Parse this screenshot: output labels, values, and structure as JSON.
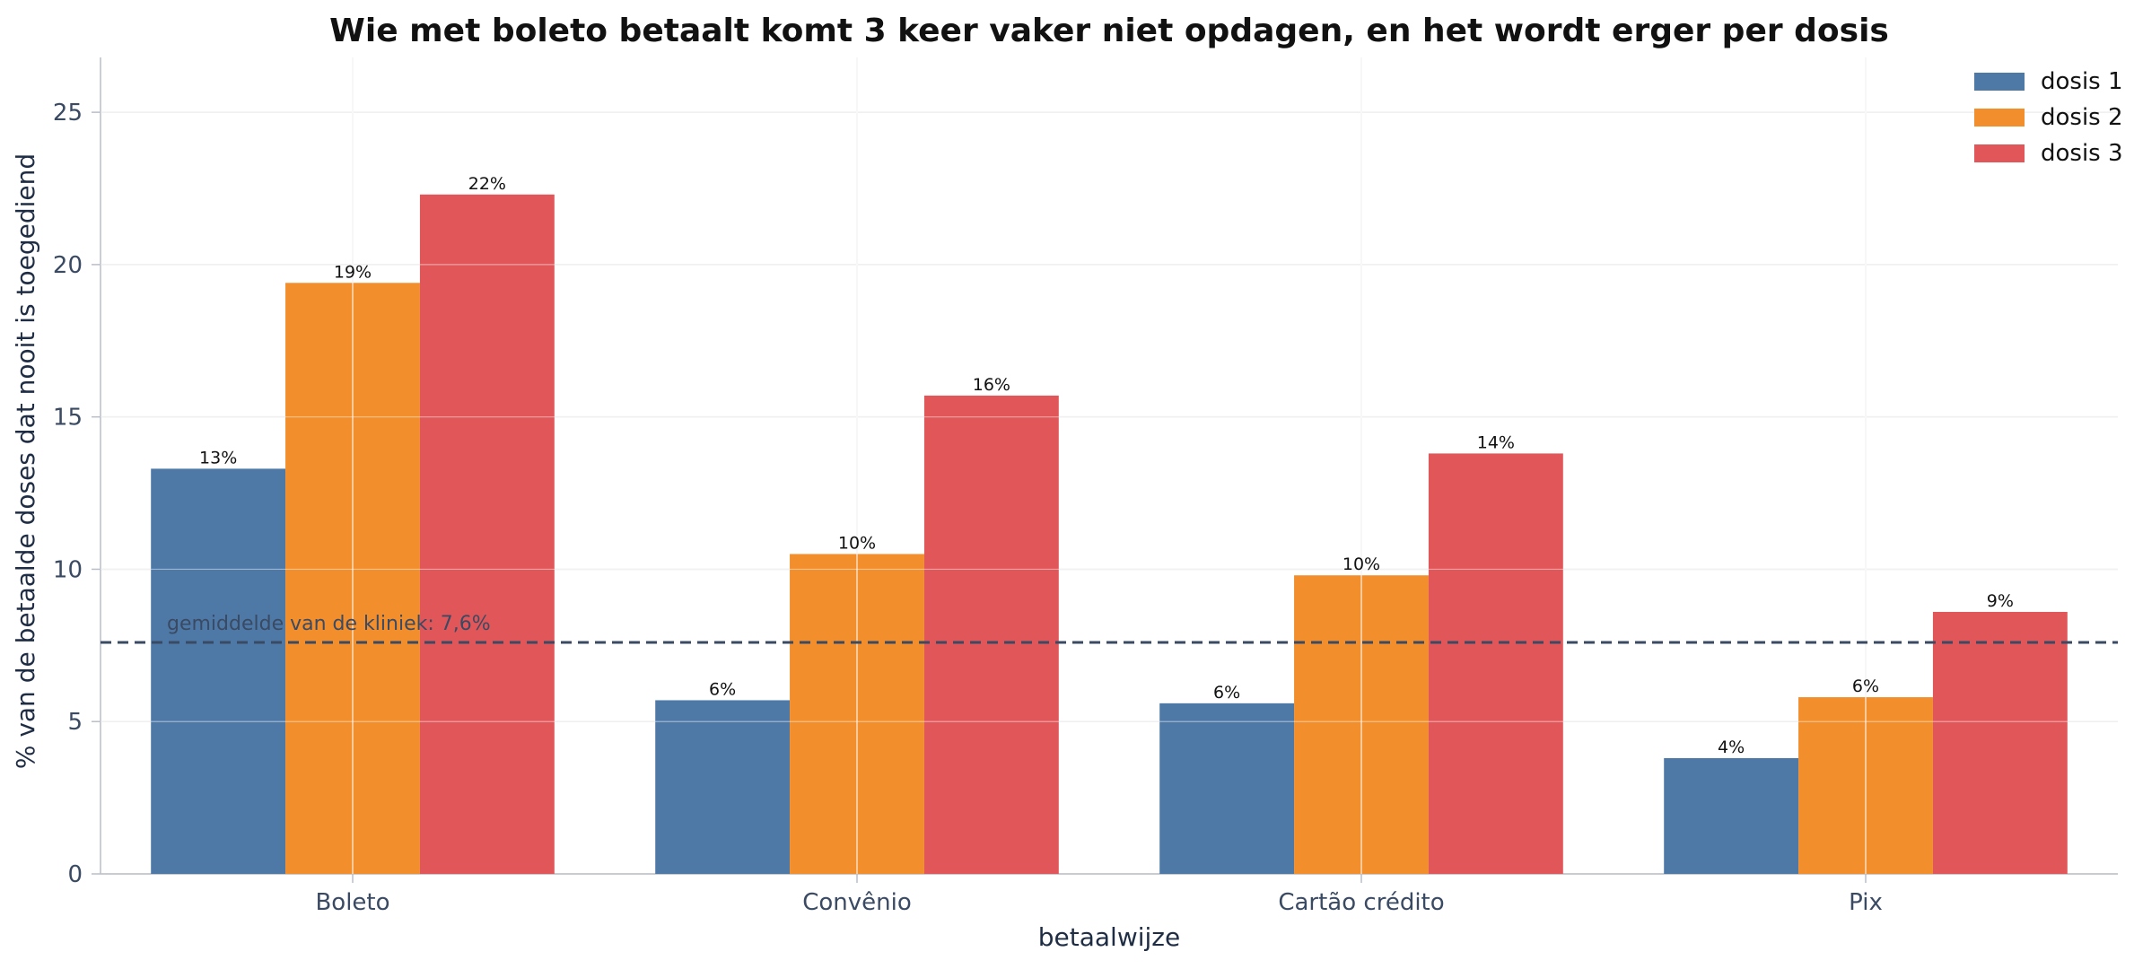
{
  "chart_data": {
    "type": "bar",
    "title": "Wie met boleto betaalt komt 3 keer vaker niet opdagen, en het wordt erger per dosis",
    "xlabel": "betaalwijze",
    "ylabel": "% van de betaalde doses dat nooit is toegediend",
    "categories": [
      "Boleto",
      "Convênio",
      "Cartão crédito",
      "Pix"
    ],
    "series": [
      {
        "name": "dosis 1",
        "color": "#4e79a7",
        "values": [
          13.3,
          5.7,
          5.6,
          3.8
        ],
        "labels": [
          "13%",
          "6%",
          "6%",
          "4%"
        ]
      },
      {
        "name": "dosis 2",
        "color": "#f28e2b",
        "values": [
          19.4,
          10.5,
          9.8,
          5.8
        ],
        "labels": [
          "19%",
          "10%",
          "10%",
          "6%"
        ]
      },
      {
        "name": "dosis 3",
        "color": "#e15759",
        "values": [
          22.3,
          15.7,
          13.8,
          8.6
        ],
        "labels": [
          "22%",
          "16%",
          "14%",
          "9%"
        ]
      }
    ],
    "ylim": [
      0,
      26.8
    ],
    "yticks": [
      0,
      5,
      10,
      15,
      20,
      25
    ],
    "grid": true,
    "legend_position": "top-right",
    "reference_line": {
      "value": 7.6,
      "label": "gemiddelde van de kliniek: 7,6%",
      "color": "#3a4a63"
    }
  }
}
